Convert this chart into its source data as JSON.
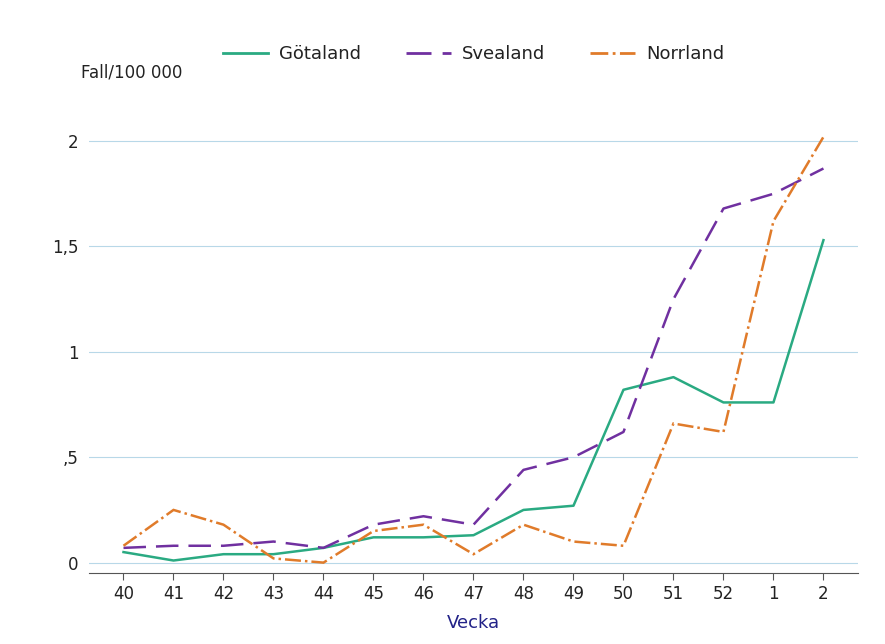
{
  "x_labels": [
    "40",
    "41",
    "42",
    "43",
    "44",
    "45",
    "46",
    "47",
    "48",
    "49",
    "50",
    "51",
    "52",
    "1",
    "2"
  ],
  "x_positions": [
    40,
    41,
    42,
    43,
    44,
    45,
    46,
    47,
    48,
    49,
    50,
    51,
    52,
    53,
    54
  ],
  "gotaland": [
    0.05,
    0.01,
    0.04,
    0.04,
    0.07,
    0.12,
    0.12,
    0.13,
    0.25,
    0.27,
    0.82,
    0.88,
    0.76,
    0.76,
    1.53
  ],
  "svealand": [
    0.07,
    0.08,
    0.08,
    0.1,
    0.07,
    0.18,
    0.22,
    0.18,
    0.44,
    0.5,
    0.62,
    1.25,
    1.68,
    1.75,
    1.87
  ],
  "norrland": [
    0.08,
    0.25,
    0.18,
    0.02,
    0.0,
    0.15,
    0.18,
    0.04,
    0.18,
    0.1,
    0.08,
    0.66,
    0.62,
    1.62,
    2.02
  ],
  "gotaland_color": "#2aaa82",
  "svealand_color": "#7030a0",
  "norrland_color": "#e07b2a",
  "ylabel": "Fall/100 000",
  "xlabel": "Vecka",
  "ylim": [
    -0.05,
    2.15
  ],
  "yticks": [
    0,
    0.5,
    1.0,
    1.5,
    2.0
  ],
  "ytick_labels": [
    "0",
    ",5",
    "1",
    "1,5",
    "2"
  ],
  "background_color": "#ffffff",
  "grid_color": "#b8d8e8",
  "legend_labels": [
    "Götaland",
    "Svealand",
    "Norrland"
  ]
}
